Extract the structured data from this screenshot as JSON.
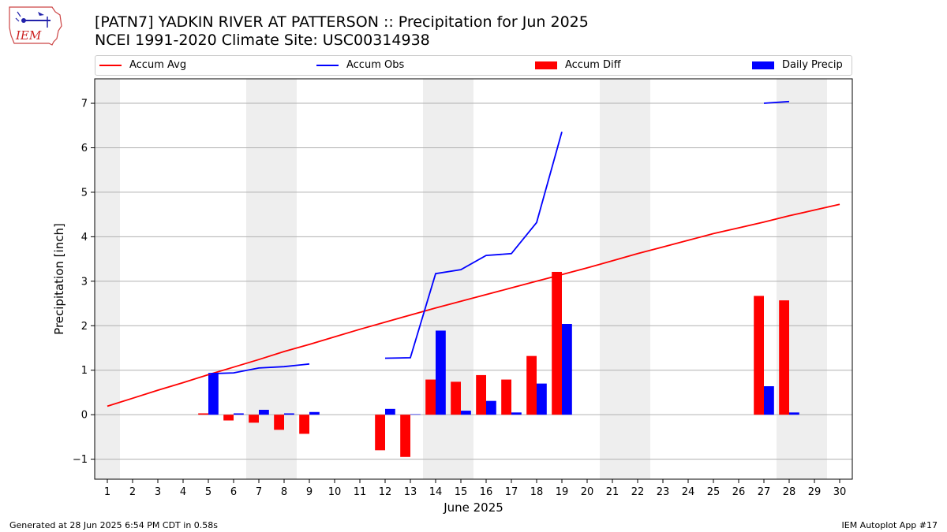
{
  "header": {
    "title": "[PATN7] YADKIN RIVER  AT PATTERSON :: Precipitation for Jun 2025",
    "subtitle": "NCEI 1991-2020 Climate Site: USC00314938",
    "logo_text": "IEM"
  },
  "legend": {
    "items": [
      {
        "label": "Accum Avg",
        "kind": "line",
        "color": "#ff0000"
      },
      {
        "label": "Accum Obs",
        "kind": "line",
        "color": "#0000ff"
      },
      {
        "label": "Accum Diff",
        "kind": "box",
        "color": "#ff0000"
      },
      {
        "label": "Daily Precip",
        "kind": "box",
        "color": "#0000ff"
      }
    ]
  },
  "footer": {
    "left": "Generated at 28 Jun 2025 6:54 PM CDT in 0.58s",
    "right": "IEM Autoplot App #17"
  },
  "chart_data": {
    "type": "bar",
    "xlabel": "June 2025",
    "ylabel": "Precipitation [inch]",
    "xlim": [
      0.5,
      30.5
    ],
    "ylim": [
      -1.45,
      7.55
    ],
    "yticks": [
      -1,
      0,
      1,
      2,
      3,
      4,
      5,
      6,
      7
    ],
    "ytick_labels": [
      "−1",
      "0",
      "1",
      "2",
      "3",
      "4",
      "5",
      "6",
      "7"
    ],
    "categories": [
      "1",
      "2",
      "3",
      "4",
      "5",
      "6",
      "7",
      "8",
      "9",
      "10",
      "11",
      "12",
      "13",
      "14",
      "15",
      "16",
      "17",
      "18",
      "19",
      "20",
      "21",
      "22",
      "23",
      "24",
      "25",
      "26",
      "27",
      "28",
      "29",
      "30"
    ],
    "weekend_bands": [
      [
        0.5,
        1.5
      ],
      [
        6.5,
        8.5
      ],
      [
        13.5,
        15.5
      ],
      [
        20.5,
        22.5
      ],
      [
        27.5,
        29.5
      ]
    ],
    "grid": "y",
    "series": [
      {
        "name": "Accum Avg",
        "type": "line",
        "color": "#ff0000",
        "values": [
          0.19,
          0.37,
          0.55,
          0.72,
          0.9,
          1.07,
          1.24,
          1.42,
          1.58,
          1.75,
          1.92,
          2.08,
          2.24,
          2.4,
          2.55,
          2.7,
          2.85,
          3.0,
          3.15,
          3.3,
          3.46,
          3.62,
          3.77,
          3.92,
          4.07,
          4.2,
          4.33,
          4.47,
          4.6,
          4.73
        ]
      },
      {
        "name": "Accum Obs",
        "type": "line",
        "color": "#0000ff",
        "values": [
          null,
          null,
          null,
          null,
          0.92,
          0.94,
          1.05,
          1.08,
          1.14,
          null,
          null,
          1.27,
          1.28,
          3.17,
          3.26,
          3.58,
          3.62,
          4.32,
          6.36,
          null,
          null,
          null,
          null,
          null,
          null,
          null,
          7.0,
          7.04,
          null,
          null
        ]
      },
      {
        "name": "Accum Diff",
        "type": "bar",
        "color": "#ff0000",
        "values": [
          null,
          null,
          null,
          null,
          0.03,
          -0.13,
          -0.18,
          -0.34,
          -0.43,
          null,
          null,
          -0.8,
          -0.95,
          0.79,
          0.74,
          0.89,
          0.79,
          1.32,
          3.21,
          null,
          null,
          null,
          null,
          null,
          null,
          null,
          2.67,
          2.57,
          null,
          null
        ]
      },
      {
        "name": "Daily Precip",
        "type": "bar",
        "color": "#0000ff",
        "values": [
          null,
          null,
          null,
          null,
          0.92,
          0.03,
          0.11,
          0.03,
          0.06,
          null,
          null,
          0.13,
          0.01,
          1.89,
          0.09,
          0.31,
          0.05,
          0.7,
          2.04,
          null,
          null,
          null,
          null,
          null,
          null,
          null,
          0.64,
          0.05,
          null,
          null
        ]
      }
    ]
  }
}
